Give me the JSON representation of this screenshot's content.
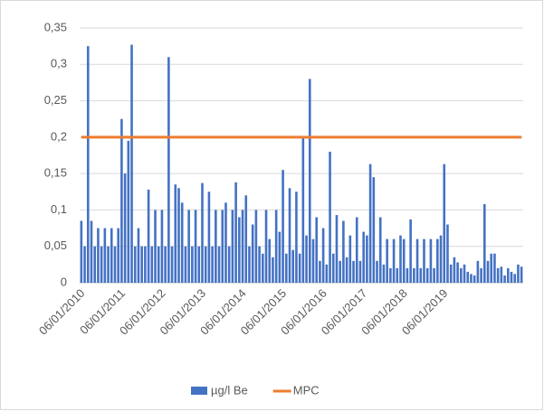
{
  "chart_data": {
    "type": "bar",
    "categories": [
      "06/01/2010",
      null,
      null,
      null,
      null,
      null,
      null,
      null,
      null,
      null,
      null,
      null,
      "06/01/2011",
      null,
      null,
      null,
      null,
      null,
      null,
      null,
      null,
      null,
      null,
      null,
      "06/01/2012",
      null,
      null,
      null,
      null,
      null,
      null,
      null,
      null,
      null,
      null,
      null,
      "06/01/2013",
      null,
      null,
      null,
      null,
      null,
      null,
      null,
      null,
      null,
      null,
      null,
      "06/01/2014",
      null,
      null,
      null,
      null,
      null,
      null,
      null,
      null,
      null,
      null,
      null,
      "06/01/2015",
      null,
      null,
      null,
      null,
      null,
      null,
      null,
      null,
      null,
      null,
      null,
      "06/01/2016",
      null,
      null,
      null,
      null,
      null,
      null,
      null,
      null,
      null,
      null,
      null,
      "06/01/2017",
      null,
      null,
      null,
      null,
      null,
      null,
      null,
      null,
      null,
      null,
      null,
      "06/01/2018",
      null,
      null,
      null,
      null,
      null,
      null,
      null,
      null,
      null,
      null,
      null,
      "06/01/2019",
      null,
      null,
      null,
      null,
      null,
      null,
      null,
      null,
      null,
      null,
      null,
      null,
      null,
      null,
      null,
      null,
      null,
      null,
      null,
      null,
      null,
      null,
      null
    ],
    "series": [
      {
        "name": "µg/l Be",
        "color": "#4472c4",
        "type": "bar",
        "values": [
          0.085,
          0.05,
          0.325,
          0.085,
          0.05,
          0.075,
          0.05,
          0.075,
          0.05,
          0.075,
          0.05,
          0.075,
          0.225,
          0.15,
          0.195,
          0.327,
          0.05,
          0.075,
          0.05,
          0.05,
          0.128,
          0.05,
          0.1,
          0.05,
          0.1,
          0.05,
          0.31,
          0.05,
          0.135,
          0.13,
          0.11,
          0.05,
          0.1,
          0.05,
          0.1,
          0.05,
          0.137,
          0.05,
          0.125,
          0.05,
          0.1,
          0.05,
          0.1,
          0.11,
          0.05,
          0.1,
          0.138,
          0.09,
          0.1,
          0.12,
          0.05,
          0.08,
          0.1,
          0.05,
          0.04,
          0.1,
          0.06,
          0.035,
          0.1,
          0.07,
          0.155,
          0.04,
          0.13,
          0.045,
          0.125,
          0.04,
          0.2,
          0.065,
          0.28,
          0.06,
          0.09,
          0.03,
          0.075,
          0.025,
          0.18,
          0.04,
          0.093,
          0.03,
          0.085,
          0.035,
          0.065,
          0.03,
          0.09,
          0.03,
          0.07,
          0.065,
          0.163,
          0.145,
          0.03,
          0.09,
          0.025,
          0.06,
          0.02,
          0.06,
          0.02,
          0.065,
          0.06,
          0.02,
          0.087,
          0.02,
          0.06,
          0.02,
          0.06,
          0.02,
          0.06,
          0.02,
          0.06,
          0.065,
          0.163,
          0.08,
          0.025,
          0.035,
          0.028,
          0.02,
          0.025,
          0.015,
          0.012,
          0.01,
          0.03,
          0.02,
          0.108,
          0.03,
          0.04,
          0.04,
          0.02,
          0.022,
          0.01,
          0.02,
          0.015,
          0.012,
          0.025,
          0.022
        ]
      },
      {
        "name": "MPC",
        "color": "#ed7d31",
        "type": "line",
        "values": [
          0.2,
          0.2,
          0.2,
          0.2,
          0.2,
          0.2,
          0.2,
          0.2,
          0.2,
          0.2,
          0.2,
          0.2,
          0.2,
          0.2,
          0.2,
          0.2,
          0.2,
          0.2,
          0.2,
          0.2,
          0.2,
          0.2,
          0.2,
          0.2,
          0.2,
          0.2,
          0.2,
          0.2,
          0.2,
          0.2,
          0.2,
          0.2,
          0.2,
          0.2,
          0.2,
          0.2,
          0.2,
          0.2,
          0.2,
          0.2,
          0.2,
          0.2,
          0.2,
          0.2,
          0.2,
          0.2,
          0.2,
          0.2,
          0.2,
          0.2,
          0.2,
          0.2,
          0.2,
          0.2,
          0.2,
          0.2,
          0.2,
          0.2,
          0.2,
          0.2,
          0.2,
          0.2,
          0.2,
          0.2,
          0.2,
          0.2,
          0.2,
          0.2,
          0.2,
          0.2,
          0.2,
          0.2,
          0.2,
          0.2,
          0.2,
          0.2,
          0.2,
          0.2,
          0.2,
          0.2,
          0.2,
          0.2,
          0.2,
          0.2,
          0.2,
          0.2,
          0.2,
          0.2,
          0.2,
          0.2,
          0.2,
          0.2,
          0.2,
          0.2,
          0.2,
          0.2,
          0.2,
          0.2,
          0.2,
          0.2,
          0.2,
          0.2,
          0.2,
          0.2,
          0.2,
          0.2,
          0.2,
          0.2,
          0.2,
          0.2,
          0.2,
          0.2,
          0.2,
          0.2,
          0.2,
          0.2,
          0.2,
          0.2,
          0.2,
          0.2,
          0.2,
          0.2,
          0.2,
          0.2,
          0.2,
          0.2,
          0.2,
          0.2,
          0.2,
          0.2,
          0.2,
          0.2
        ]
      }
    ],
    "ylim": [
      0,
      0.35
    ],
    "yticks": [
      0,
      {
        "value": 0.05,
        "label": "0,05"
      },
      {
        "value": 0.1,
        "label": "0,1"
      },
      {
        "value": 0.15,
        "label": "0,15"
      },
      {
        "value": 0.2,
        "label": "0,2"
      },
      {
        "value": 0.25,
        "label": "0,25"
      },
      {
        "value": 0.3,
        "label": "0,3"
      },
      {
        "value": 0.35,
        "label": "0,35"
      }
    ],
    "grid": true,
    "legend": "bottom"
  }
}
